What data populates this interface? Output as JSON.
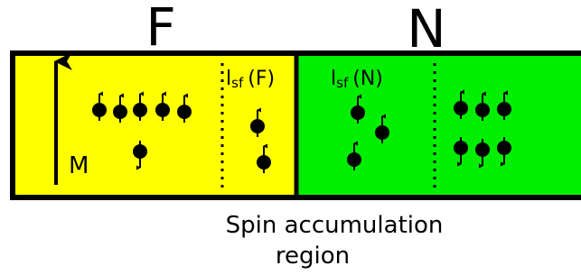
{
  "regions": {
    "left": {
      "label": "F"
    },
    "right": {
      "label": "N"
    }
  },
  "magnetization": {
    "label": "M"
  },
  "spin_flip_lengths": [
    {
      "symbol": "l",
      "subscript": "sf",
      "suffix": "(F)"
    },
    {
      "symbol": "l",
      "subscript": "sf",
      "suffix": "(N)"
    }
  ],
  "caption": [
    "Spin accumulation",
    "region"
  ]
}
